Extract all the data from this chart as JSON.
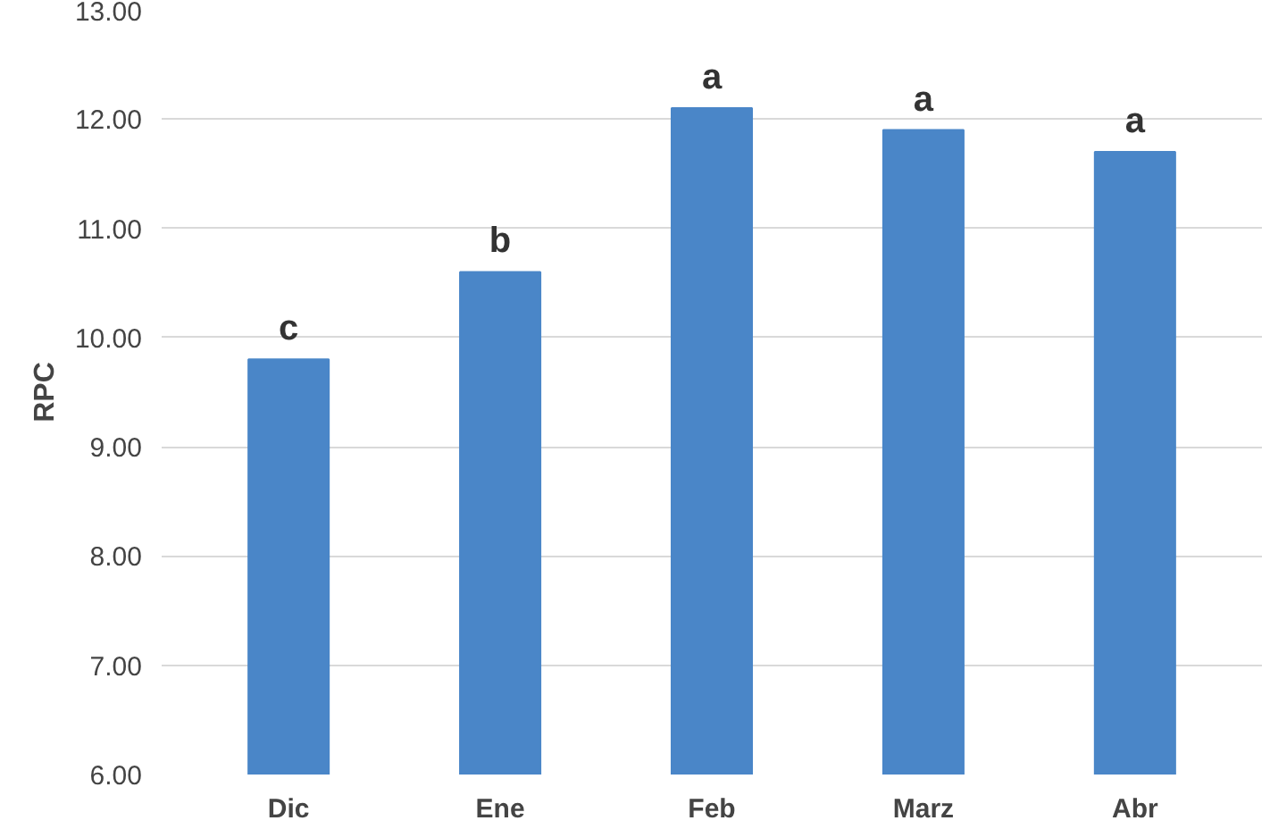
{
  "chart_data": {
    "type": "bar",
    "ylabel": "RPC",
    "categories": [
      "Dic",
      "Ene",
      "Feb",
      "Marz",
      "Abr"
    ],
    "values": [
      9.8,
      10.6,
      12.1,
      11.9,
      11.7
    ],
    "color": "#4a86c8",
    "ylim": [
      6,
      13
    ],
    "yticks": [
      {
        "value": 6,
        "label": "6.00"
      },
      {
        "value": 7,
        "label": "7.00"
      },
      {
        "value": 8,
        "label": "8.00"
      },
      {
        "value": 9,
        "label": "9.00"
      },
      {
        "value": 10,
        "label": "10.00"
      },
      {
        "value": 11,
        "label": "11.00"
      },
      {
        "value": 12,
        "label": "12.00"
      },
      {
        "value": 13,
        "label": "13.00"
      }
    ],
    "grid": "y",
    "annotations": [
      {
        "text": "c",
        "x": "Dic",
        "y": 9.8
      },
      {
        "text": "b",
        "x": "Ene",
        "y": 10.6
      },
      {
        "text": "a",
        "x": "Feb",
        "y": 12.1
      },
      {
        "text": "a",
        "x": "Marz",
        "y": 11.9
      },
      {
        "text": "a",
        "x": "Abr",
        "y": 11.7
      }
    ]
  }
}
